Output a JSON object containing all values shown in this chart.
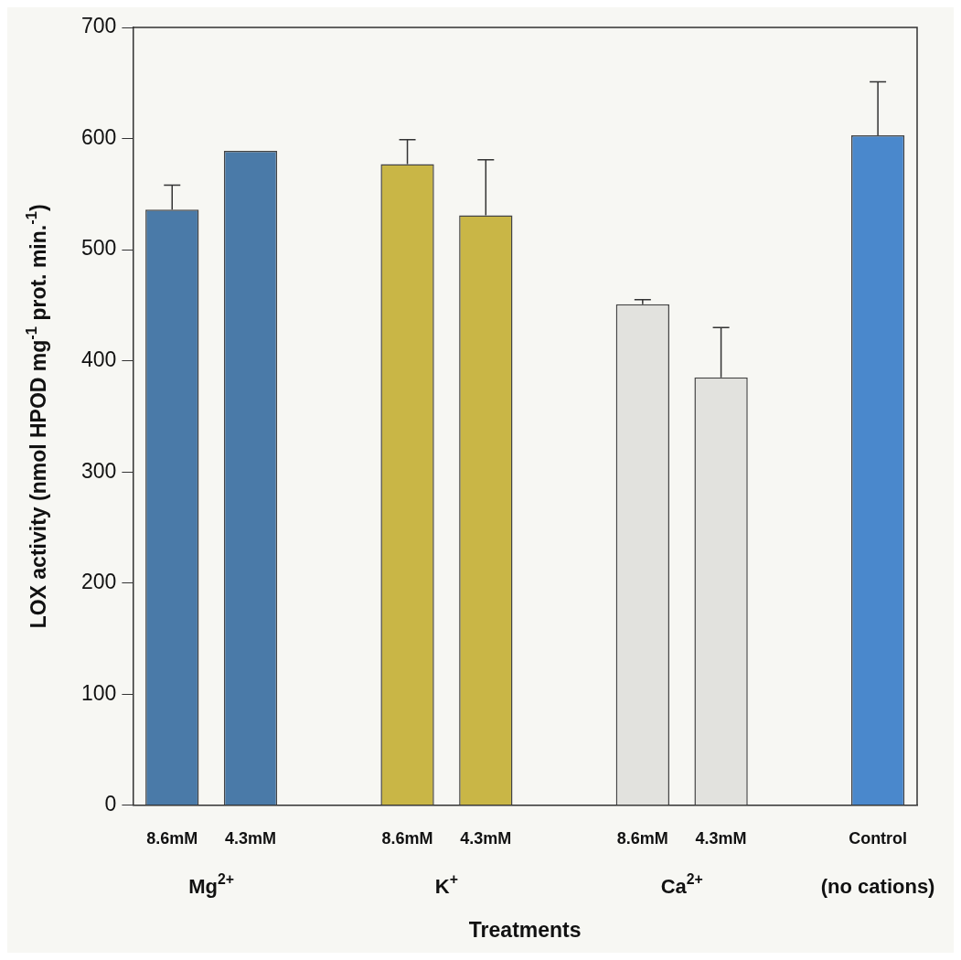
{
  "chart_data": {
    "type": "bar",
    "xlabel": "Treatments",
    "ylabel": "LOX activity (nmol HPOD mg$^{-1}$ prot. min.$^{-1}$)",
    "categories": [
      "8.6mM",
      "4.3mM",
      null,
      "8.6mM",
      "4.3mM",
      null,
      "8.6mM",
      "4.3mM",
      null,
      "Control"
    ],
    "values": [
      536,
      589,
      null,
      577,
      531,
      null,
      451,
      385,
      null,
      603
    ],
    "errors": [
      22,
      null,
      null,
      22,
      50,
      null,
      4,
      45,
      null,
      48
    ],
    "colors": [
      "#4a7aa8",
      "#4a7aa8",
      "#000000",
      "#c9b646",
      "#c9b646",
      "#000000",
      "#e2e2de",
      "#e2e2de",
      "#000000",
      "#4a88cc"
    ],
    "ylim": [
      0,
      700
    ],
    "yticks": [
      0,
      100,
      200,
      300,
      400,
      500,
      600,
      700
    ],
    "annotations": [
      "Mg$^{2+}$",
      "K$^{+}$",
      "Ca$^{2+}$",
      "(no cations)"
    ],
    "grid": false,
    "legend": false
  }
}
